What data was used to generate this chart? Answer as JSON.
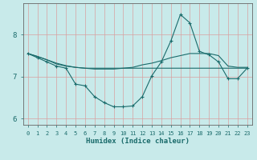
{
  "xlabel": "Humidex (Indice chaleur)",
  "ylabel": "",
  "background_color": "#c8eaea",
  "grid_color": "#d8a0a0",
  "line_color": "#1a6b6b",
  "x_values": [
    0,
    1,
    2,
    3,
    4,
    5,
    6,
    7,
    8,
    9,
    10,
    11,
    12,
    13,
    14,
    15,
    16,
    17,
    18,
    19,
    20,
    21,
    22,
    23
  ],
  "line1": [
    7.55,
    7.45,
    7.35,
    7.25,
    7.2,
    6.82,
    6.78,
    6.52,
    6.38,
    6.28,
    6.28,
    6.3,
    6.52,
    7.02,
    7.35,
    7.85,
    8.48,
    8.28,
    7.6,
    7.52,
    7.35,
    6.95,
    6.95,
    7.2
  ],
  "line2": [
    7.55,
    7.48,
    7.4,
    7.32,
    7.26,
    7.22,
    7.2,
    7.18,
    7.18,
    7.18,
    7.2,
    7.22,
    7.28,
    7.32,
    7.38,
    7.45,
    7.5,
    7.55,
    7.55,
    7.55,
    7.5,
    7.25,
    7.22,
    7.22
  ],
  "line3": [
    7.55,
    7.48,
    7.4,
    7.3,
    7.25,
    7.22,
    7.2,
    7.2,
    7.2,
    7.2,
    7.2,
    7.2,
    7.2,
    7.2,
    7.2,
    7.2,
    7.2,
    7.2,
    7.2,
    7.2,
    7.2,
    7.2,
    7.2,
    7.2
  ],
  "ylim": [
    5.85,
    8.75
  ],
  "xlim": [
    -0.5,
    23.5
  ],
  "yticks": [
    6,
    7,
    8
  ],
  "xticks": [
    0,
    1,
    2,
    3,
    4,
    5,
    6,
    7,
    8,
    9,
    10,
    11,
    12,
    13,
    14,
    15,
    16,
    17,
    18,
    19,
    20,
    21,
    22,
    23
  ]
}
